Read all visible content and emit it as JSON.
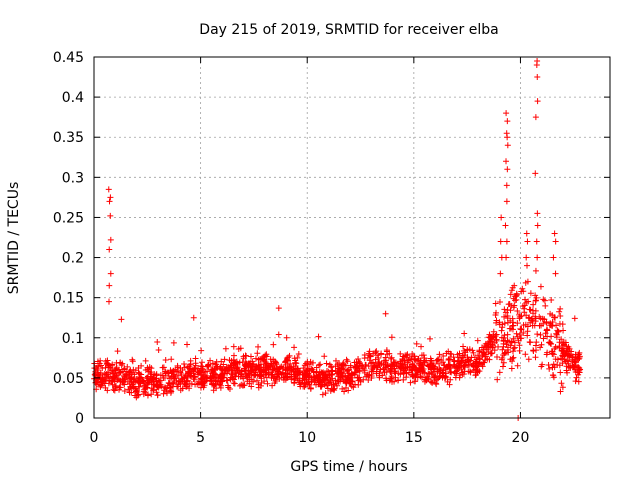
{
  "chart_data": {
    "type": "scatter",
    "title": "Day 215 of 2019, SRMTID for receiver elba",
    "xlabel": "GPS time / hours",
    "ylabel": "SRMTID / TECUs",
    "xlim": [
      0,
      24.2
    ],
    "ylim": [
      0,
      0.45
    ],
    "xticks": [
      0,
      5,
      10,
      15,
      20
    ],
    "yticks": [
      0,
      0.05,
      0.1,
      0.15,
      0.2,
      0.25,
      0.3,
      0.35,
      0.4,
      0.45
    ],
    "ytick_labels": [
      "0",
      "0.05",
      "0.1",
      "0.15",
      "0.2",
      "0.25",
      "0.3",
      "0.35",
      "0.4",
      "0.45"
    ],
    "grid": true,
    "marker": "+",
    "color": "#ff0000",
    "profile": {
      "description": "baseline level by hour (approximate)",
      "hours": [
        0,
        1,
        2,
        3,
        4,
        5,
        6,
        7,
        8,
        9,
        10,
        11,
        12,
        13,
        14,
        15,
        16,
        17,
        18,
        19,
        20,
        21,
        22,
        22.8
      ],
      "base": [
        0.055,
        0.05,
        0.045,
        0.045,
        0.05,
        0.055,
        0.055,
        0.058,
        0.06,
        0.062,
        0.052,
        0.05,
        0.055,
        0.065,
        0.065,
        0.06,
        0.06,
        0.065,
        0.07,
        0.1,
        0.12,
        0.12,
        0.08,
        0.06
      ]
    },
    "peaks": [
      {
        "x": 0.75,
        "values": [
          0.285,
          0.275,
          0.27,
          0.252,
          0.222,
          0.21,
          0.18,
          0.165,
          0.145
        ]
      },
      {
        "x": 1.3,
        "values": [
          0.123
        ]
      },
      {
        "x": 4.7,
        "values": [
          0.125
        ]
      },
      {
        "x": 8.7,
        "values": [
          0.137
        ]
      },
      {
        "x": 13.7,
        "values": [
          0.13
        ]
      },
      {
        "x": 19.35,
        "values": [
          0.38,
          0.37,
          0.355,
          0.35,
          0.34,
          0.32,
          0.31,
          0.29,
          0.27,
          0.24,
          0.22,
          0.2
        ]
      },
      {
        "x": 19.1,
        "values": [
          0.25,
          0.22,
          0.2,
          0.18
        ]
      },
      {
        "x": 20.75,
        "values": [
          0.445,
          0.44,
          0.425,
          0.395,
          0.375,
          0.305,
          0.255,
          0.24,
          0.22,
          0.2
        ]
      },
      {
        "x": 20.3,
        "values": [
          0.23,
          0.22,
          0.2,
          0.19,
          0.17
        ]
      },
      {
        "x": 21.6,
        "values": [
          0.23,
          0.22,
          0.2,
          0.18
        ]
      },
      {
        "x": 19.85,
        "values": [
          0.0
        ]
      }
    ]
  }
}
